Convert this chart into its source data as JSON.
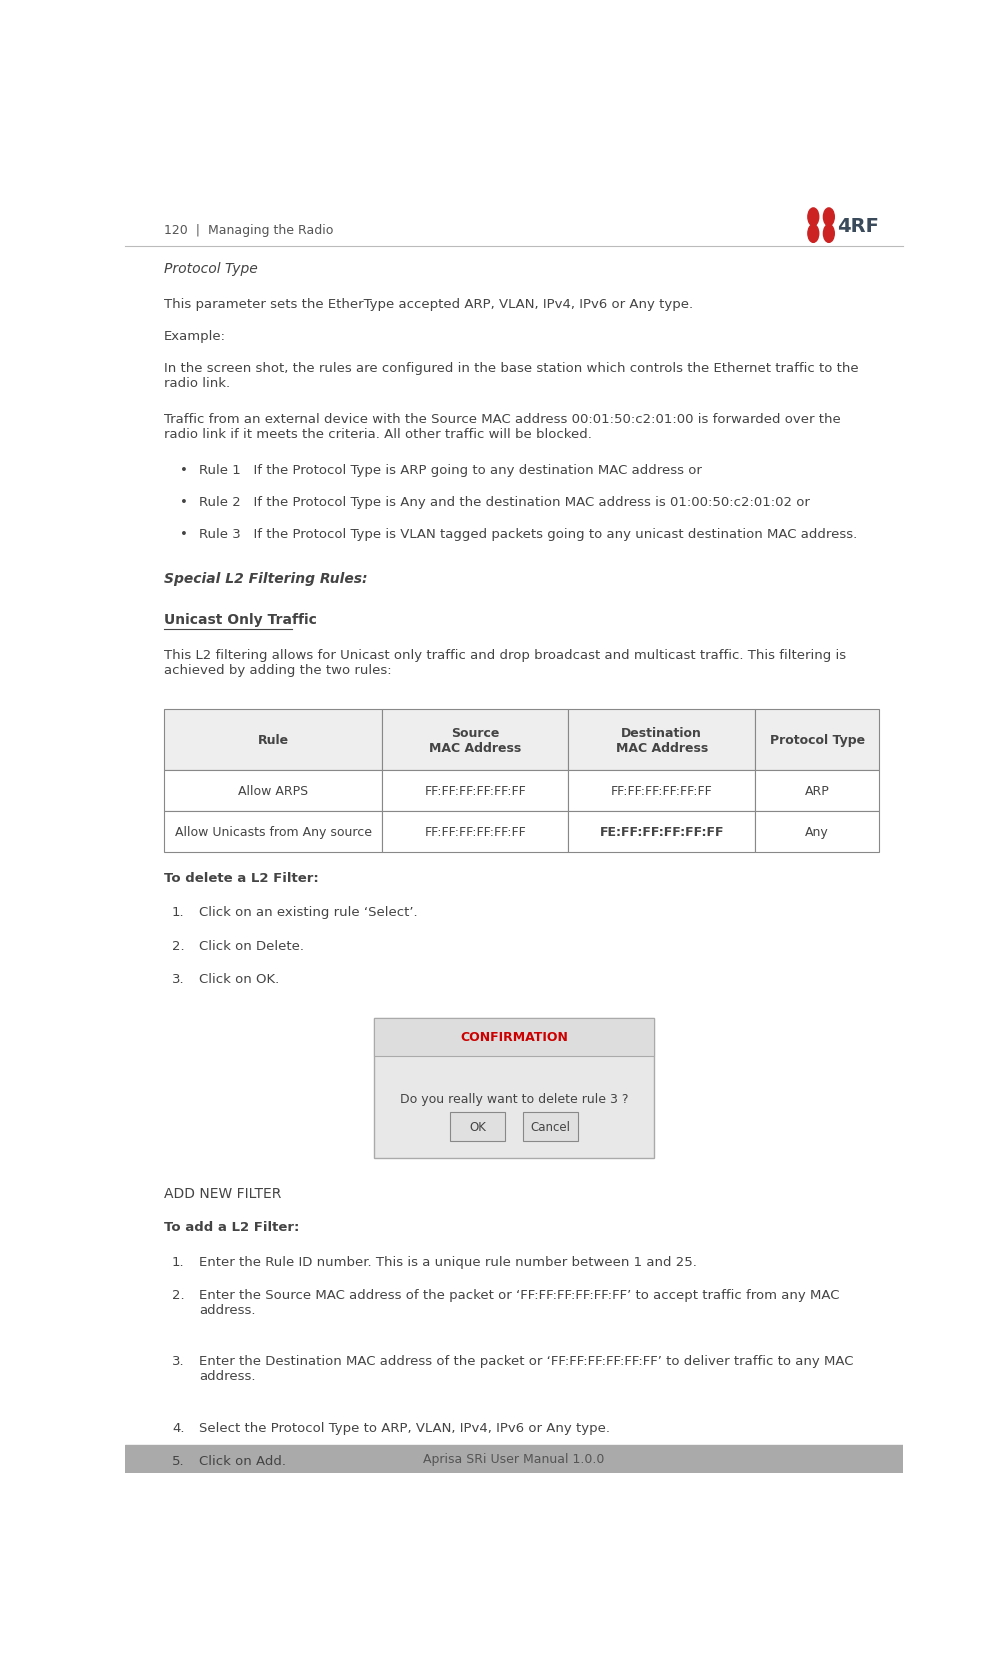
{
  "page_width": 10.03,
  "page_height": 16.56,
  "bg_color": "#ffffff",
  "header_text": "120  |  Managing the Radio",
  "footer_text": "Aprisa SRi User Manual 1.0.0",
  "header_text_color": "#555555",
  "footer_text_color": "#555555",
  "logo_color": "#3a4a5a",
  "section_italic_label": "Protocol Type",
  "para1": "This parameter sets the EtherType accepted ARP, VLAN, IPv4, IPv6 or Any type.",
  "para_example": "Example:",
  "para2": "In the screen shot, the rules are configured in the base station which controls the Ethernet traffic to the\nradio link.",
  "para3": "Traffic from an external device with the Source MAC address 00:01:50:c2:01:00 is forwarded over the\nradio link if it meets the criteria. All other traffic will be blocked.",
  "bullet1": "Rule 1   If the Protocol Type is ARP going to any destination MAC address or",
  "bullet2": "Rule 2   If the Protocol Type is Any and the destination MAC address is 01:00:50:c2:01:02 or",
  "bullet3": "Rule 3   If the Protocol Type is VLAN tagged packets going to any unicast destination MAC address.",
  "special_heading": "Special L2 Filtering Rules:",
  "unicast_heading": "Unicast Only Traffic",
  "para4": "This L2 filtering allows for Unicast only traffic and drop broadcast and multicast traffic. This filtering is\nachieved by adding the two rules:",
  "table_headers": [
    "Rule",
    "Source\nMAC Address",
    "Destination\nMAC Address",
    "Protocol Type"
  ],
  "table_row1": [
    "Allow ARPS",
    "FF:FF:FF:FF:FF:FF",
    "FF:FF:FF:FF:FF:FF",
    "ARP"
  ],
  "table_row2": [
    "Allow Unicasts from Any source",
    "FF:FF:FF:FF:FF:FF",
    "FE:FF:FF:FF:FF:FF",
    "Any"
  ],
  "delete_heading": "To delete a L2 Filter:",
  "delete_steps": [
    "Click on an existing rule ‘Select’.",
    "Click on Delete.",
    "Click on OK."
  ],
  "confirmation_title": "CONFIRMATION",
  "confirmation_title_color": "#cc0000",
  "confirmation_msg": "Do you really want to delete rule 3 ?",
  "confirmation_btn1": "OK",
  "confirmation_btn2": "Cancel",
  "add_section_heading": "ADD NEW FILTER",
  "add_heading": "To add a L2 Filter:",
  "add_steps": [
    "Enter the Rule ID number. This is a unique rule number between 1 and 25.",
    "Enter the Source MAC address of the packet or ‘FF:FF:FF:FF:FF:FF’ to accept traffic from any MAC\naddress.",
    "Enter the Destination MAC address of the packet or ‘FF:FF:FF:FF:FF:FF’ to deliver traffic to any MAC\naddress.",
    "Select the Protocol Type to ARP, VLAN, IPv4, IPv6 or Any type.",
    "Click on Add."
  ],
  "text_color": "#444444",
  "table_border_color": "#888888",
  "dialog_bg": "#e8e8e8",
  "dialog_border_color": "#aaaaaa",
  "btn_bg": "#e0e0e0",
  "btn_border": "#888888"
}
